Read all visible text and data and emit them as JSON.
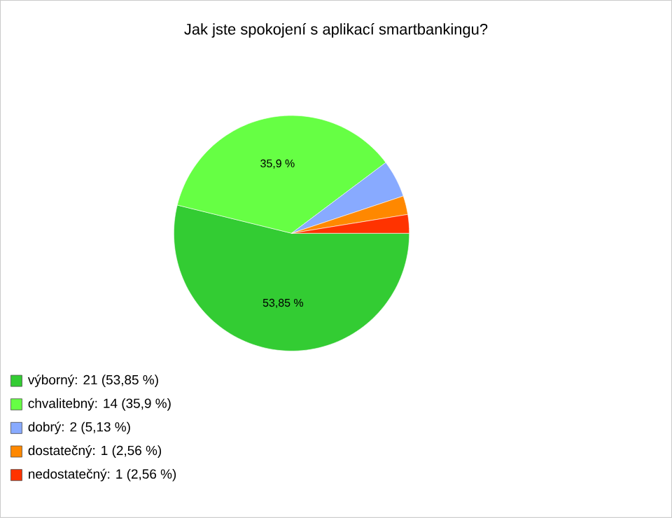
{
  "chart_data": {
    "type": "pie",
    "title": "Jak jste spokojení s aplikací smartbankingu?",
    "categories": [
      "výborný: 21 (53,85 %)",
      "chvalitebný: 14 (35,9 %)",
      "dobrý: 2 (5,13 %)",
      "dostatečný: 1 (2,56 %)",
      "nedostatečný: 1 (2,56 %)"
    ],
    "values": [
      53.85,
      35.9,
      5.13,
      2.56,
      2.56
    ],
    "colors": [
      "#33cc33",
      "#66ff44",
      "#88aaff",
      "#ff8800",
      "#ff3300"
    ],
    "value_labels": [
      "53,85 %",
      "35,9 %",
      null,
      null,
      null
    ],
    "legend": "bottom"
  }
}
